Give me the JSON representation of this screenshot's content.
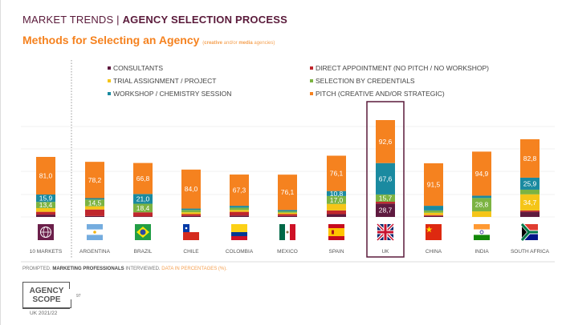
{
  "header": {
    "prefix": "MARKET TRENDS | ",
    "title": "AGENCY SELECTION PROCESS"
  },
  "subtitle": {
    "main": "Methods for Selecting an Agency ",
    "note_open": "(",
    "note_b1": "creative",
    "note_mid": " and/or ",
    "note_b2": "media",
    "note_end": " agencies)"
  },
  "footer": {
    "t1": "PROMPTED. ",
    "t2": "MARKETING PROFESSIONALS",
    "t3": " INTERVIEWED. ",
    "t4": "DATA IN PERCENTAGES (%)."
  },
  "logo": {
    "line1": "AGENCY",
    "line2": "SCOPE",
    "edition": "UK 2021/22",
    "page": "97"
  },
  "flags": [
    "globe",
    "argentina",
    "brazil",
    "chile",
    "colombia",
    "mexico",
    "spain",
    "uk",
    "china",
    "india",
    "south-africa"
  ],
  "highlighted_category": "UK",
  "chart_data": {
    "type": "bar",
    "stacked": true,
    "title": "Methods for Selecting an Agency",
    "categories": [
      "10 MARKETS",
      "ARGENTINA",
      "BRAZIL",
      "CHILE",
      "COLOMBIA",
      "MEXICO",
      "SPAIN",
      "UK",
      "CHINA",
      "INDIA",
      "SOUTH AFRICA"
    ],
    "legend_position": "top",
    "grid": true,
    "series": [
      {
        "name": "CONSULTANTS",
        "color": "#5e1a3f",
        "values": [
          5,
          2,
          1,
          2,
          3,
          2,
          6,
          28.7,
          2,
          0,
          11
        ],
        "printed": [
          null,
          null,
          null,
          null,
          null,
          null,
          null,
          "28,7",
          null,
          null,
          null
        ]
      },
      {
        "name": "DIRECT APPOINTMENT (NO PITCH / NO WORKSHOP)",
        "color": "#c0272d",
        "values": [
          6,
          14,
          9,
          4,
          8,
          4,
          8,
          4,
          2,
          0,
          3
        ],
        "printed": [
          null,
          null,
          null,
          null,
          null,
          null,
          null,
          null,
          null,
          null,
          null
        ]
      },
      {
        "name": "TRIAL ASSIGNMENT / PROJECT",
        "color": "#f5c518",
        "values": [
          8,
          7,
          0,
          4,
          4,
          3,
          14,
          0,
          5,
          12,
          34.7
        ],
        "printed": [
          null,
          null,
          null,
          null,
          null,
          null,
          null,
          null,
          null,
          null,
          "34,7"
        ]
      },
      {
        "name": "SELECTION BY CREDENTIALS",
        "color": "#7cb342",
        "values": [
          13.4,
          14.5,
          18.4,
          5,
          5,
          3,
          17.0,
          15.7,
          5,
          28.8,
          10
        ],
        "printed": [
          "13,4",
          "14,5",
          "18,4",
          null,
          null,
          null,
          "17,0",
          "15,7",
          null,
          "28,8",
          null
        ]
      },
      {
        "name": "WORKSHOP / CHEMISTRY SESSION",
        "color": "#1a8aa0",
        "values": [
          15.9,
          3,
          21.0,
          3,
          4,
          3,
          10.8,
          67.6,
          10,
          5,
          25.9
        ],
        "printed": [
          "15,9",
          null,
          "21,0",
          null,
          null,
          null,
          "10,8",
          "67,6",
          null,
          null,
          "25,9"
        ]
      },
      {
        "name": "PITCH (CREATIVE AND/OR STRATEGIC)",
        "color": "#f5821f",
        "values": [
          81.0,
          78.2,
          66.8,
          84.0,
          67.3,
          76.1,
          76.1,
          92.6,
          91.5,
          94.9,
          82.8
        ],
        "printed": [
          "81,0",
          "78,2",
          "66,8",
          "84,0",
          "67,3",
          "76,1",
          "76,1",
          "92,6",
          "91,5",
          "94,9",
          "82,8"
        ]
      }
    ]
  }
}
